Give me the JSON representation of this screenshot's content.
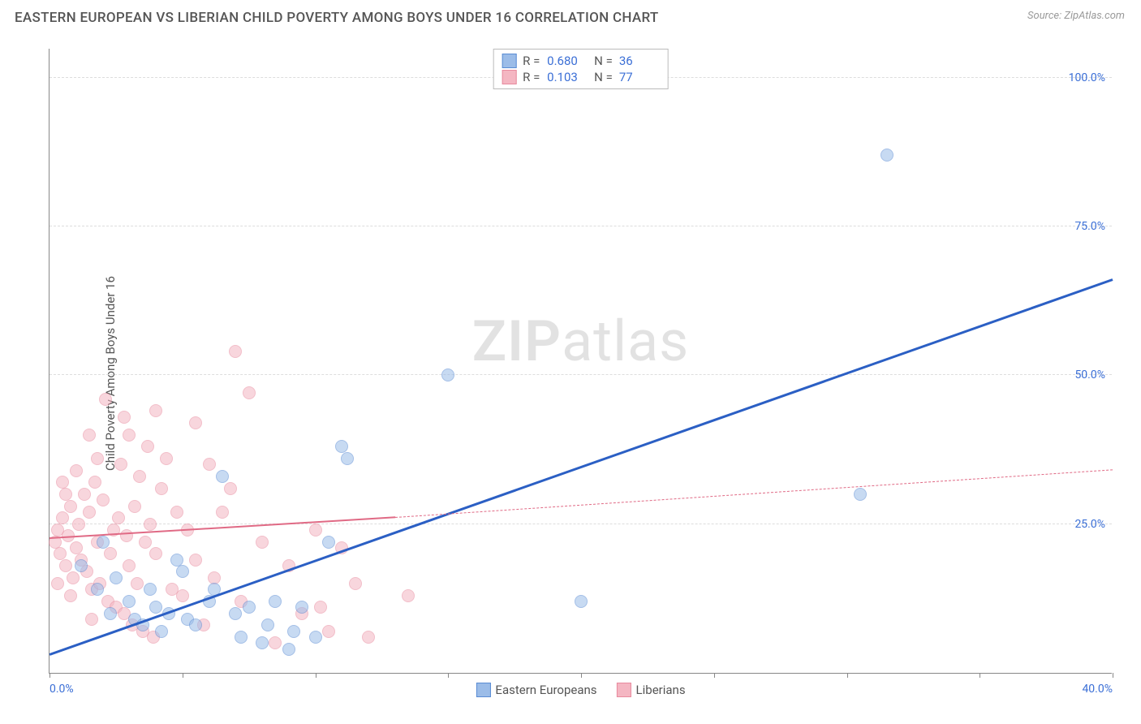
{
  "title": "EASTERN EUROPEAN VS LIBERIAN CHILD POVERTY AMONG BOYS UNDER 16 CORRELATION CHART",
  "source": "Source: ZipAtlas.com",
  "ylabel": "Child Poverty Among Boys Under 16",
  "watermark_bold": "ZIP",
  "watermark_rest": "atlas",
  "chart": {
    "type": "scatter",
    "background_color": "#ffffff",
    "grid_color": "#dddddd",
    "axis_color": "#888888",
    "tick_label_color": "#3b6fd6",
    "xlim": [
      0,
      40
    ],
    "ylim": [
      0,
      105
    ],
    "xticks": [
      0,
      5,
      10,
      15,
      20,
      25,
      30,
      35,
      40
    ],
    "xticks_labeled": {
      "0": "0.0%",
      "40": "40.0%"
    },
    "yticks": [
      25,
      50,
      75,
      100
    ],
    "yticks_labeled": {
      "25": "25.0%",
      "50": "50.0%",
      "75": "75.0%",
      "100": "100.0%"
    },
    "marker_radius": 8,
    "marker_opacity": 0.55
  },
  "series": [
    {
      "name": "Eastern Europeans",
      "label": "Eastern Europeans",
      "fill": "#9bbce8",
      "stroke": "#5a8cd4",
      "line_color": "#2b5fc4",
      "line_width": 2.5,
      "line_dash": "solid",
      "r_value": "0.680",
      "n_value": "36",
      "trend": {
        "x1": 0,
        "y1": 3,
        "x2": 40,
        "y2": 66
      },
      "trend_ext": null,
      "points": [
        [
          1.2,
          18
        ],
        [
          1.8,
          14
        ],
        [
          2.0,
          22
        ],
        [
          2.3,
          10
        ],
        [
          2.5,
          16
        ],
        [
          3.0,
          12
        ],
        [
          3.2,
          9
        ],
        [
          3.5,
          8
        ],
        [
          3.8,
          14
        ],
        [
          4.0,
          11
        ],
        [
          4.2,
          7
        ],
        [
          4.5,
          10
        ],
        [
          5.0,
          17
        ],
        [
          5.2,
          9
        ],
        [
          5.5,
          8
        ],
        [
          6.0,
          12
        ],
        [
          6.2,
          14
        ],
        [
          6.5,
          33
        ],
        [
          7.0,
          10
        ],
        [
          7.2,
          6
        ],
        [
          7.5,
          11
        ],
        [
          8.0,
          5
        ],
        [
          8.2,
          8
        ],
        [
          8.5,
          12
        ],
        [
          9.0,
          4
        ],
        [
          9.2,
          7
        ],
        [
          9.5,
          11
        ],
        [
          10.0,
          6
        ],
        [
          10.5,
          22
        ],
        [
          11.0,
          38
        ],
        [
          11.2,
          36
        ],
        [
          15.0,
          50
        ],
        [
          20.0,
          12
        ],
        [
          30.5,
          30
        ],
        [
          31.5,
          87
        ],
        [
          4.8,
          19
        ]
      ]
    },
    {
      "name": "Liberians",
      "label": "Liberians",
      "fill": "#f4b6c2",
      "stroke": "#e88a9e",
      "line_color": "#e06a85",
      "line_width": 2,
      "line_dash": "solid",
      "r_value": "0.103",
      "n_value": "77",
      "trend": {
        "x1": 0,
        "y1": 22.5,
        "x2": 13,
        "y2": 26
      },
      "trend_ext": {
        "x1": 13,
        "y1": 26,
        "x2": 40,
        "y2": 34,
        "dash": true
      },
      "points": [
        [
          0.2,
          22
        ],
        [
          0.3,
          24
        ],
        [
          0.4,
          20
        ],
        [
          0.5,
          26
        ],
        [
          0.6,
          18
        ],
        [
          0.7,
          23
        ],
        [
          0.8,
          28
        ],
        [
          0.9,
          16
        ],
        [
          1.0,
          21
        ],
        [
          1.1,
          25
        ],
        [
          1.2,
          19
        ],
        [
          1.3,
          30
        ],
        [
          1.4,
          17
        ],
        [
          1.5,
          27
        ],
        [
          1.6,
          14
        ],
        [
          1.7,
          32
        ],
        [
          1.8,
          22
        ],
        [
          1.9,
          15
        ],
        [
          2.0,
          29
        ],
        [
          2.1,
          46
        ],
        [
          2.2,
          12
        ],
        [
          2.3,
          20
        ],
        [
          2.4,
          24
        ],
        [
          2.5,
          11
        ],
        [
          2.6,
          26
        ],
        [
          2.7,
          35
        ],
        [
          2.8,
          10
        ],
        [
          2.9,
          23
        ],
        [
          3.0,
          18
        ],
        [
          3.1,
          8
        ],
        [
          3.2,
          28
        ],
        [
          3.3,
          15
        ],
        [
          3.4,
          33
        ],
        [
          3.5,
          7
        ],
        [
          3.6,
          22
        ],
        [
          3.7,
          38
        ],
        [
          3.8,
          25
        ],
        [
          3.9,
          6
        ],
        [
          4.0,
          20
        ],
        [
          4.2,
          31
        ],
        [
          4.4,
          36
        ],
        [
          4.6,
          14
        ],
        [
          4.8,
          27
        ],
        [
          5.0,
          13
        ],
        [
          5.2,
          24
        ],
        [
          5.5,
          19
        ],
        [
          5.8,
          8
        ],
        [
          6.0,
          35
        ],
        [
          6.2,
          16
        ],
        [
          6.5,
          27
        ],
        [
          7.0,
          54
        ],
        [
          7.2,
          12
        ],
        [
          7.5,
          47
        ],
        [
          8.0,
          22
        ],
        [
          8.5,
          5
        ],
        [
          9.0,
          18
        ],
        [
          9.5,
          10
        ],
        [
          10.0,
          24
        ],
        [
          10.5,
          7
        ],
        [
          11.0,
          21
        ],
        [
          11.5,
          15
        ],
        [
          12.0,
          6
        ],
        [
          13.5,
          13
        ],
        [
          1.0,
          34
        ],
        [
          1.5,
          40
        ],
        [
          0.5,
          32
        ],
        [
          2.8,
          43
        ],
        [
          0.8,
          13
        ],
        [
          1.6,
          9
        ],
        [
          4.0,
          44
        ],
        [
          5.5,
          42
        ],
        [
          0.3,
          15
        ],
        [
          0.6,
          30
        ],
        [
          1.8,
          36
        ],
        [
          3.0,
          40
        ],
        [
          6.8,
          31
        ],
        [
          10.2,
          11
        ]
      ]
    }
  ],
  "stats_legend": {
    "r_label": "R =",
    "n_label": "N ="
  }
}
